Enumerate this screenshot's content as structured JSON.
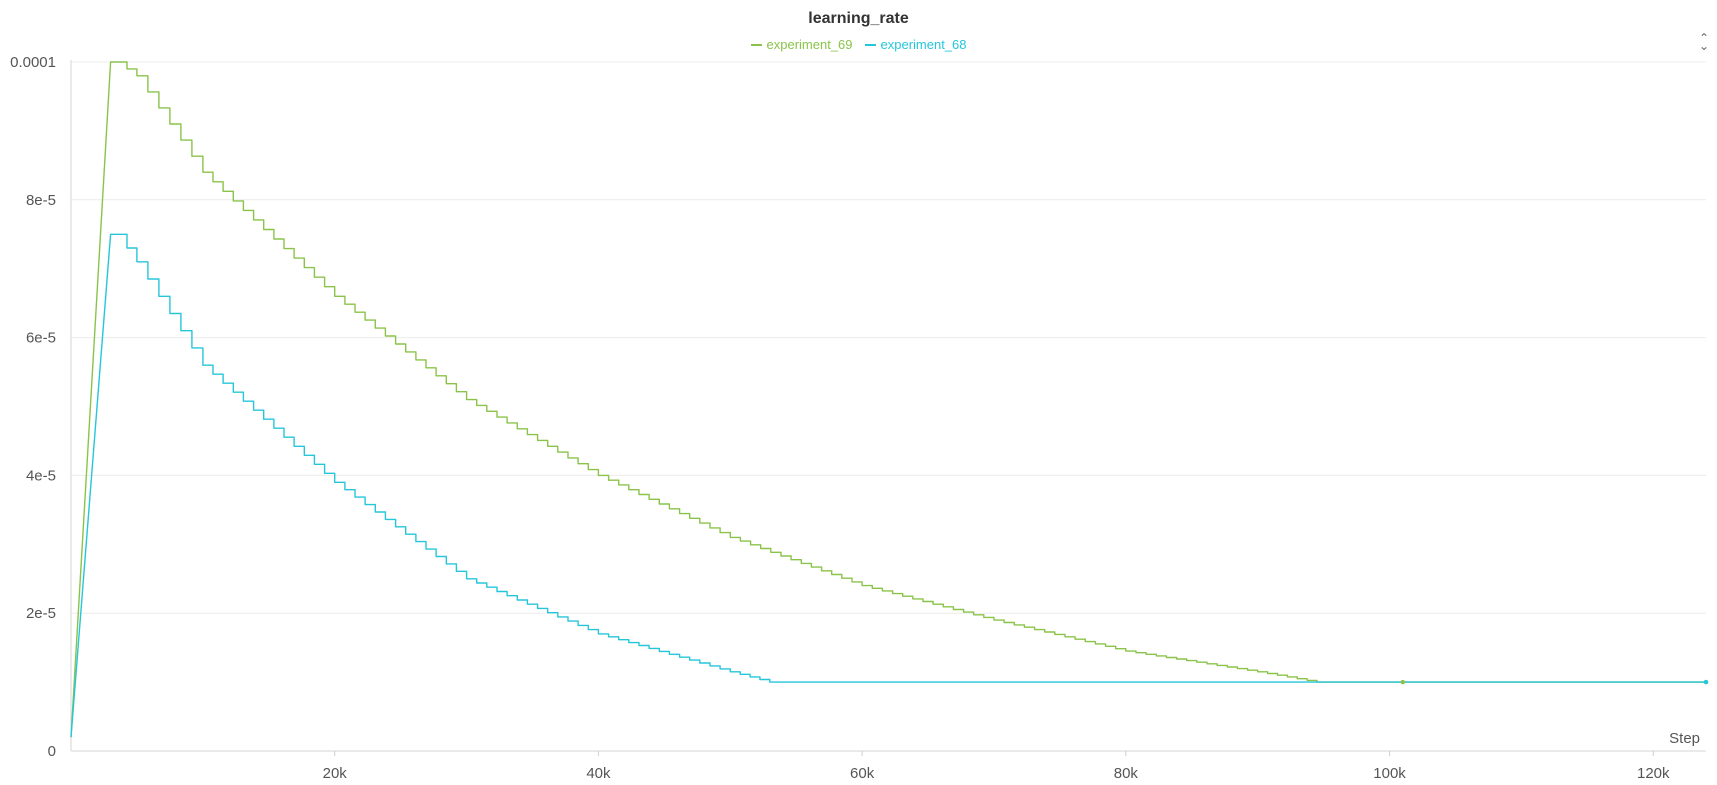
{
  "chart_data": {
    "type": "line",
    "title": "learning_rate",
    "xlabel": "Step",
    "ylabel": "",
    "xlim": [
      0,
      124000
    ],
    "ylim": [
      0,
      0.0001
    ],
    "x_ticks": [
      {
        "value": 20000,
        "label": "20k"
      },
      {
        "value": 40000,
        "label": "40k"
      },
      {
        "value": 60000,
        "label": "60k"
      },
      {
        "value": 80000,
        "label": "80k"
      },
      {
        "value": 100000,
        "label": "100k"
      },
      {
        "value": 120000,
        "label": "120k"
      }
    ],
    "y_ticks": [
      {
        "value": 0,
        "label": "0"
      },
      {
        "value": 2e-05,
        "label": "2e-5"
      },
      {
        "value": 4e-05,
        "label": "4e-5"
      },
      {
        "value": 6e-05,
        "label": "6e-5"
      },
      {
        "value": 8e-05,
        "label": "8e-5"
      },
      {
        "value": 0.0001,
        "label": "0.0001"
      }
    ],
    "grid": true,
    "legend_position": "top-center",
    "series": [
      {
        "name": "experiment_69",
        "color": "#8bc34a",
        "x": [
          0,
          3000,
          3500,
          5000,
          10000,
          20000,
          30000,
          40000,
          50000,
          60000,
          70000,
          80000,
          90000,
          94500,
          101000,
          124000
        ],
        "y": [
          2e-06,
          0.0001,
          0.0001,
          9.8e-05,
          8.4e-05,
          6.6e-05,
          5.1e-05,
          4e-05,
          3.1e-05,
          2.4e-05,
          1.9e-05,
          1.45e-05,
          1.15e-05,
          1e-05,
          1e-05,
          1e-05
        ]
      },
      {
        "name": "experiment_68",
        "color": "#26c6da",
        "x": [
          0,
          3000,
          3500,
          5000,
          10000,
          20000,
          30000,
          40000,
          50000,
          53000,
          124000
        ],
        "y": [
          2e-06,
          7.5e-05,
          7.5e-05,
          7.1e-05,
          5.6e-05,
          3.9e-05,
          2.5e-05,
          1.7e-05,
          1.15e-05,
          1e-05,
          1e-05
        ]
      }
    ]
  }
}
